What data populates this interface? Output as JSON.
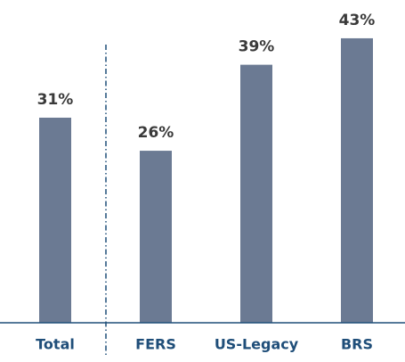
{
  "chart_data": {
    "type": "bar",
    "categories": [
      "Total",
      "FERS",
      "US-Legacy",
      "BRS"
    ],
    "values": [
      31,
      26,
      39,
      43
    ],
    "value_labels": [
      "31%",
      "26%",
      "39%",
      "43%"
    ],
    "color": "#6b7a93"
  }
}
